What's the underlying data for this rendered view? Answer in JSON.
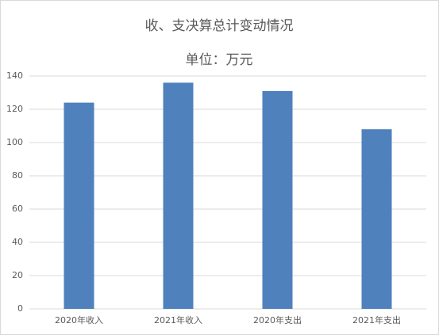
{
  "chart_data": {
    "type": "bar",
    "title": "收、支决算总计变动情况",
    "subtitle": "单位：万元",
    "categories": [
      "2020年收入",
      "2021年收入",
      "2020年支出",
      "2021年支出"
    ],
    "values": [
      124,
      136,
      131,
      108
    ],
    "color": "#4f81bd",
    "ylim": [
      0,
      140
    ],
    "yticks": [
      0,
      20,
      40,
      60,
      80,
      100,
      120,
      140
    ],
    "grid": true
  }
}
